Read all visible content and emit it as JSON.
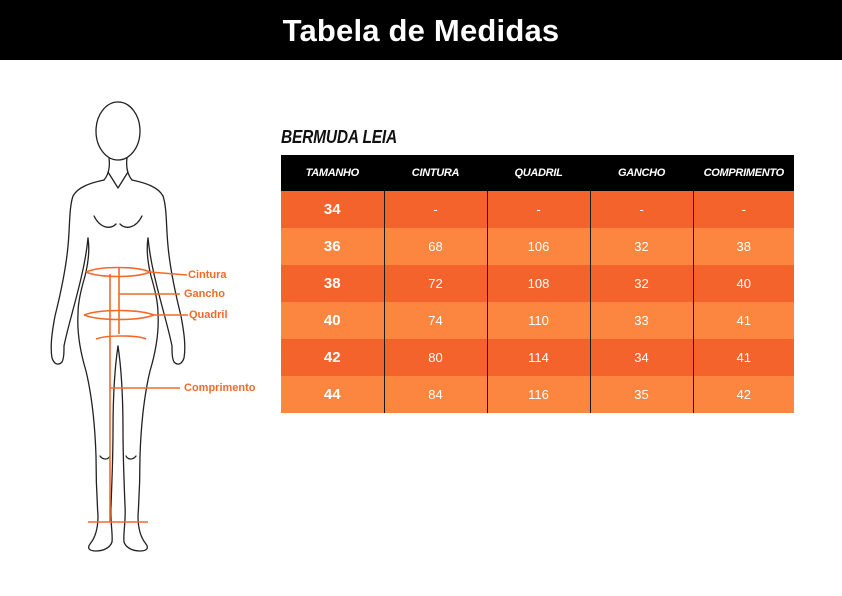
{
  "header": {
    "title": "Tabela de Medidas"
  },
  "figure": {
    "labels": {
      "waist": "Cintura",
      "rise": "Gancho",
      "hip": "Quadril",
      "length": "Comprimento"
    }
  },
  "product": {
    "name": "BERMUDA LEIA"
  },
  "table": {
    "headers": [
      "TAMANHO",
      "CINTURA",
      "QUADRIL",
      "GANCHO",
      "COMPRIMENTO"
    ],
    "rows": [
      [
        "34",
        "-",
        "-",
        "-",
        "-"
      ],
      [
        "36",
        "68",
        "106",
        "32",
        "38"
      ],
      [
        "38",
        "72",
        "108",
        "32",
        "40"
      ],
      [
        "40",
        "74",
        "110",
        "33",
        "41"
      ],
      [
        "42",
        "80",
        "114",
        "34",
        "41"
      ],
      [
        "44",
        "84",
        "116",
        "35",
        "42"
      ]
    ]
  },
  "colors": {
    "accent": "#f26a2b",
    "row_dark": "#f4632c",
    "row_light": "#fc8540",
    "header_bg": "#000000"
  }
}
